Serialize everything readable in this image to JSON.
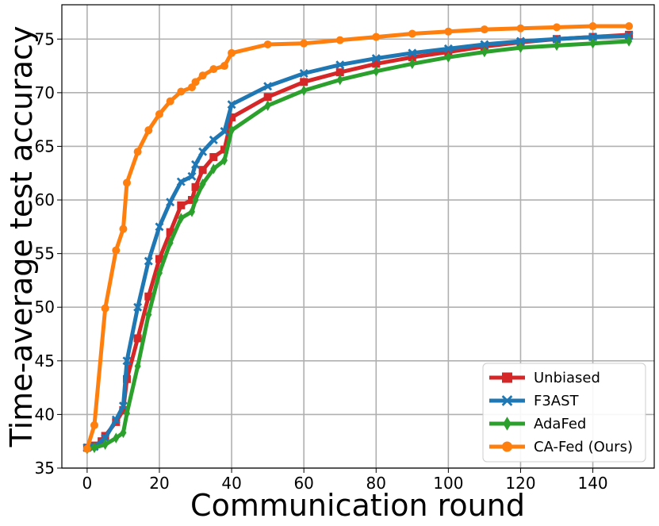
{
  "chart_data": {
    "type": "line",
    "xlabel": "Communication round",
    "ylabel": "Time-average test accuracy",
    "xlim": [
      -7,
      157
    ],
    "ylim": [
      35,
      78.2
    ],
    "xticks": [
      "0",
      "20",
      "40",
      "60",
      "80",
      "100",
      "120",
      "140"
    ],
    "yticks": [
      "35",
      "40",
      "45",
      "50",
      "55",
      "60",
      "65",
      "70",
      "75"
    ],
    "grid": true,
    "legend_position": "lower-right",
    "series": [
      {
        "name": "Unbiased",
        "color": "#d62728",
        "marker": "square",
        "points": [
          [
            0,
            36.9
          ],
          [
            2,
            37.1
          ],
          [
            4,
            37.5
          ],
          [
            5,
            38.0
          ],
          [
            8,
            39.3
          ],
          [
            10,
            40.4
          ],
          [
            11,
            43.3
          ],
          [
            14,
            47.1
          ],
          [
            17,
            51.0
          ],
          [
            20,
            54.5
          ],
          [
            23,
            57.0
          ],
          [
            26,
            59.5
          ],
          [
            29,
            60.0
          ],
          [
            30,
            61.2
          ],
          [
            32,
            62.8
          ],
          [
            35,
            64.0
          ],
          [
            38,
            64.7
          ],
          [
            40,
            67.7
          ],
          [
            50,
            69.6
          ],
          [
            60,
            71.0
          ],
          [
            70,
            71.9
          ],
          [
            80,
            72.7
          ],
          [
            90,
            73.3
          ],
          [
            100,
            73.8
          ],
          [
            110,
            74.3
          ],
          [
            120,
            74.7
          ],
          [
            130,
            75.0
          ],
          [
            140,
            75.2
          ],
          [
            150,
            75.4
          ]
        ]
      },
      {
        "name": "F3AST",
        "color": "#1f77b4",
        "marker": "x",
        "points": [
          [
            0,
            36.9
          ],
          [
            2,
            37.0
          ],
          [
            5,
            37.8
          ],
          [
            8,
            39.5
          ],
          [
            10,
            40.8
          ],
          [
            11,
            45.0
          ],
          [
            14,
            50.0
          ],
          [
            17,
            54.3
          ],
          [
            20,
            57.5
          ],
          [
            23,
            59.8
          ],
          [
            26,
            61.7
          ],
          [
            29,
            62.2
          ],
          [
            30,
            63.3
          ],
          [
            32,
            64.5
          ],
          [
            35,
            65.6
          ],
          [
            38,
            66.4
          ],
          [
            40,
            68.9
          ],
          [
            50,
            70.6
          ],
          [
            60,
            71.8
          ],
          [
            70,
            72.6
          ],
          [
            80,
            73.2
          ],
          [
            90,
            73.7
          ],
          [
            100,
            74.1
          ],
          [
            110,
            74.5
          ],
          [
            120,
            74.8
          ],
          [
            130,
            75.0
          ],
          [
            140,
            75.2
          ],
          [
            150,
            75.3
          ]
        ]
      },
      {
        "name": "AdaFed",
        "color": "#2ca02c",
        "marker": "diamond",
        "points": [
          [
            0,
            36.8
          ],
          [
            2,
            36.9
          ],
          [
            5,
            37.2
          ],
          [
            8,
            37.8
          ],
          [
            10,
            38.3
          ],
          [
            11,
            40.1
          ],
          [
            14,
            44.5
          ],
          [
            17,
            49.3
          ],
          [
            20,
            53.2
          ],
          [
            23,
            56.0
          ],
          [
            26,
            58.3
          ],
          [
            29,
            58.9
          ],
          [
            30,
            60.0
          ],
          [
            32,
            61.5
          ],
          [
            35,
            62.9
          ],
          [
            38,
            63.7
          ],
          [
            40,
            66.5
          ],
          [
            50,
            68.8
          ],
          [
            60,
            70.2
          ],
          [
            70,
            71.2
          ],
          [
            80,
            72.0
          ],
          [
            90,
            72.7
          ],
          [
            100,
            73.3
          ],
          [
            110,
            73.8
          ],
          [
            120,
            74.2
          ],
          [
            130,
            74.4
          ],
          [
            140,
            74.6
          ],
          [
            150,
            74.8
          ]
        ]
      },
      {
        "name": "CA-Fed (Ours)",
        "color": "#ff7f0e",
        "marker": "circle",
        "points": [
          [
            0,
            36.8
          ],
          [
            2,
            39.0
          ],
          [
            5,
            49.9
          ],
          [
            8,
            55.3
          ],
          [
            10,
            57.3
          ],
          [
            11,
            61.6
          ],
          [
            14,
            64.5
          ],
          [
            17,
            66.5
          ],
          [
            20,
            68.0
          ],
          [
            23,
            69.2
          ],
          [
            26,
            70.1
          ],
          [
            29,
            70.5
          ],
          [
            30,
            71.0
          ],
          [
            32,
            71.6
          ],
          [
            35,
            72.2
          ],
          [
            38,
            72.5
          ],
          [
            40,
            73.7
          ],
          [
            50,
            74.5
          ],
          [
            60,
            74.6
          ],
          [
            70,
            74.9
          ],
          [
            80,
            75.2
          ],
          [
            90,
            75.5
          ],
          [
            100,
            75.7
          ],
          [
            110,
            75.9
          ],
          [
            120,
            76.0
          ],
          [
            130,
            76.1
          ],
          [
            140,
            76.2
          ],
          [
            150,
            76.2
          ]
        ]
      }
    ]
  }
}
